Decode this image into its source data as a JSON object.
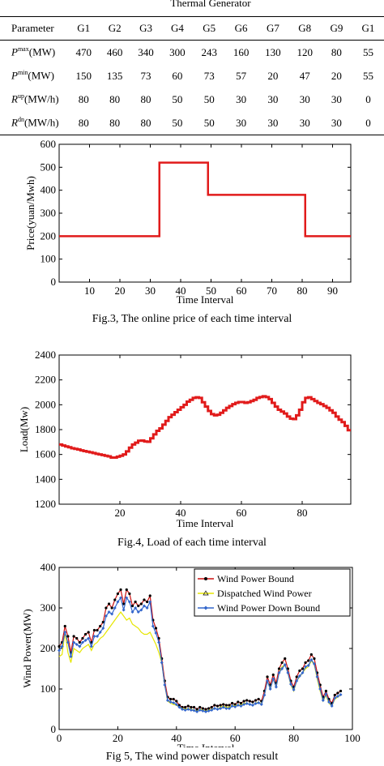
{
  "table": {
    "title": "Thermal Generator",
    "header_param": "Parameter",
    "columns": [
      "G1",
      "G2",
      "G3",
      "G4",
      "G5",
      "G6",
      "G7",
      "G8",
      "G9",
      "G1"
    ],
    "rows": [
      {
        "sym": "P",
        "sup": "max",
        "unit": "(MW)",
        "values": [
          "470",
          "460",
          "340",
          "300",
          "243",
          "160",
          "130",
          "120",
          "80",
          "55"
        ]
      },
      {
        "sym": "P",
        "sup": "min",
        "unit": "(MW)",
        "values": [
          "150",
          "135",
          "73",
          "60",
          "73",
          "57",
          "20",
          "47",
          "20",
          "55"
        ]
      },
      {
        "sym": "R",
        "sup": "up",
        "unit": "(MW/h)",
        "values": [
          "80",
          "80",
          "80",
          "50",
          "50",
          "30",
          "30",
          "30",
          "30",
          "0"
        ]
      },
      {
        "sym": "R",
        "sup": "dn",
        "unit": "(MW/h)",
        "values": [
          "80",
          "80",
          "80",
          "50",
          "50",
          "30",
          "30",
          "30",
          "30",
          "0"
        ]
      }
    ]
  },
  "captions": {
    "fig3": "Fig.3, The online price of each time interval",
    "fig4": "Fig.4, Load of each time interval",
    "fig5": "Fig 5, The wind power dispatch result"
  },
  "chart_data": [
    {
      "type": "line",
      "xlabel": "Time Interval",
      "ylabel": "Price(yuan/Mwh)",
      "xlim": [
        0,
        96
      ],
      "ylim": [
        0,
        600
      ],
      "xticks": [
        10,
        20,
        30,
        40,
        50,
        60,
        70,
        80,
        90
      ],
      "yticks": [
        0,
        100,
        200,
        300,
        400,
        500,
        600
      ],
      "color": "#e11b1b",
      "series": [
        {
          "x": [
            0,
            33,
            33,
            49,
            49,
            81,
            81,
            96
          ],
          "y": [
            200,
            200,
            520,
            520,
            380,
            380,
            200,
            200
          ]
        }
      ]
    },
    {
      "type": "line",
      "xlabel": "Time Interval",
      "ylabel": "Load(Mw)",
      "xlim": [
        0,
        96
      ],
      "ylim": [
        1200,
        2400
      ],
      "xticks": [
        20,
        40,
        60,
        80
      ],
      "yticks": [
        1200,
        1400,
        1600,
        1800,
        2000,
        2200,
        2400
      ],
      "color": "#e11b1b",
      "series": [
        {
          "x": [
            0,
            1,
            2,
            3,
            4,
            5,
            6,
            7,
            8,
            9,
            10,
            11,
            12,
            13,
            14,
            15,
            16,
            17,
            18,
            19,
            20,
            21,
            22,
            23,
            24,
            25,
            26,
            27,
            28,
            29,
            30,
            31,
            32,
            33,
            34,
            35,
            36,
            37,
            38,
            39,
            40,
            41,
            42,
            43,
            44,
            45,
            46,
            47,
            48,
            49,
            50,
            51,
            52,
            53,
            54,
            55,
            56,
            57,
            58,
            59,
            60,
            61,
            62,
            63,
            64,
            65,
            66,
            67,
            68,
            69,
            70,
            71,
            72,
            73,
            74,
            75,
            76,
            77,
            78,
            79,
            80,
            81,
            82,
            83,
            84,
            85,
            86,
            87,
            88,
            89,
            90,
            91,
            92,
            93,
            94,
            95,
            96
          ],
          "y": [
            1680,
            1672,
            1665,
            1658,
            1650,
            1645,
            1640,
            1633,
            1627,
            1622,
            1617,
            1612,
            1605,
            1600,
            1595,
            1590,
            1585,
            1575,
            1575,
            1582,
            1590,
            1600,
            1625,
            1655,
            1680,
            1695,
            1710,
            1712,
            1705,
            1702,
            1730,
            1762,
            1790,
            1810,
            1840,
            1870,
            1900,
            1920,
            1940,
            1960,
            1980,
            2000,
            2025,
            2040,
            2055,
            2060,
            2055,
            2020,
            1985,
            1950,
            1925,
            1915,
            1920,
            1935,
            1955,
            1975,
            1990,
            2005,
            2015,
            2022,
            2022,
            2015,
            2020,
            2030,
            2040,
            2055,
            2062,
            2068,
            2062,
            2045,
            2015,
            1985,
            1960,
            1945,
            1930,
            1905,
            1888,
            1885,
            1915,
            1960,
            2020,
            2055,
            2060,
            2045,
            2030,
            2015,
            2005,
            1990,
            1975,
            1955,
            1935,
            1905,
            1880,
            1860,
            1830,
            1795,
            1745
          ]
        }
      ]
    },
    {
      "type": "line",
      "xlabel": "Time Interval",
      "ylabel": "Wind Power(MW)",
      "xlim": [
        0,
        100
      ],
      "ylim": [
        0,
        400
      ],
      "xticks": [
        0,
        20,
        40,
        60,
        80,
        100
      ],
      "yticks": [
        0,
        100,
        200,
        300,
        400
      ],
      "legend_position": "top-right",
      "series": [
        {
          "name": "Wind Power Bound",
          "color": "#cc1111",
          "marker": "dot",
          "y": [
            205,
            215,
            255,
            230,
            190,
            230,
            225,
            215,
            225,
            235,
            240,
            215,
            245,
            245,
            255,
            265,
            300,
            310,
            300,
            320,
            335,
            345,
            310,
            345,
            335,
            305,
            315,
            305,
            310,
            320,
            315,
            330,
            270,
            250,
            225,
            175,
            120,
            80,
            75,
            75,
            70,
            60,
            55,
            55,
            58,
            55,
            55,
            50,
            55,
            52,
            50,
            52,
            55,
            60,
            58,
            60,
            62,
            60,
            60,
            65,
            62,
            68,
            65,
            70,
            72,
            70,
            68,
            72,
            75,
            70,
            95,
            130,
            110,
            135,
            115,
            150,
            165,
            175,
            150,
            120,
            105,
            130,
            145,
            150,
            165,
            170,
            185,
            175,
            140,
            110,
            80,
            95,
            75,
            65,
            85,
            90,
            95
          ]
        },
        {
          "name": "Dispatched Wind Power",
          "color": "#e6e600",
          "marker": "line",
          "y": [
            180,
            185,
            240,
            190,
            165,
            200,
            195,
            190,
            200,
            205,
            210,
            195,
            210,
            215,
            225,
            230,
            240,
            250,
            260,
            270,
            280,
            290,
            280,
            270,
            275,
            260,
            255,
            250,
            240,
            235,
            235,
            240,
            225,
            210,
            190,
            165,
            110,
            70,
            65,
            62,
            60,
            55,
            52,
            50,
            52,
            50,
            48,
            45,
            50,
            48,
            45,
            48,
            50,
            52,
            50,
            55,
            58,
            55,
            55,
            60,
            58,
            62,
            60,
            65,
            65,
            62,
            60,
            65,
            68,
            62,
            85,
            120,
            100,
            125,
            105,
            140,
            155,
            160,
            140,
            110,
            95,
            120,
            130,
            140,
            150,
            155,
            170,
            160,
            125,
            95,
            70,
            85,
            65,
            58,
            75,
            80,
            85
          ]
        },
        {
          "name": "Wind Power Down Bound",
          "color": "#3366cc",
          "marker": "diamond",
          "y": [
            195,
            205,
            240,
            215,
            180,
            215,
            210,
            205,
            215,
            220,
            225,
            205,
            230,
            230,
            240,
            250,
            280,
            290,
            285,
            300,
            315,
            325,
            295,
            325,
            315,
            290,
            300,
            290,
            295,
            305,
            300,
            315,
            255,
            238,
            215,
            165,
            110,
            72,
            68,
            66,
            62,
            55,
            50,
            48,
            50,
            48,
            47,
            44,
            48,
            46,
            44,
            46,
            48,
            52,
            50,
            52,
            55,
            52,
            52,
            58,
            56,
            60,
            58,
            62,
            64,
            62,
            60,
            64,
            66,
            62,
            85,
            120,
            100,
            125,
            105,
            140,
            150,
            160,
            140,
            112,
            98,
            120,
            132,
            140,
            155,
            158,
            172,
            162,
            130,
            100,
            72,
            88,
            68,
            58,
            78,
            82,
            86
          ]
        }
      ]
    }
  ]
}
